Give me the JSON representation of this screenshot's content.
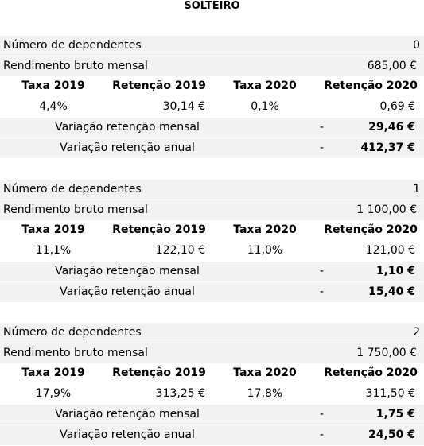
{
  "title": "SOLTEIRO",
  "blocks": [
    {
      "dependents": {
        "label": "Número de dependentes",
        "value": 0
      },
      "income": {
        "label": "Rendimento bruto mensal",
        "value": "685,00 €"
      },
      "headers": [
        "Taxa 2019",
        "Retenção 2019",
        "Taxa 2020",
        "Retenção 2020"
      ],
      "values": [
        "4,4%",
        "30,14 €",
        "0,1%",
        "0,69 €"
      ],
      "monthly": {
        "label": "Variação retenção mensal",
        "sign": "-",
        "value": "29,46 €"
      },
      "annual": {
        "label": "Variação retenção anual",
        "sign": "-",
        "value": "412,37 €"
      }
    },
    {
      "dependents": {
        "label": "Número de dependentes",
        "value": 1
      },
      "income": {
        "label": "Rendimento bruto mensal",
        "value": "1 100,00 €"
      },
      "headers": [
        "Taxa 2019",
        "Retenção 2019",
        "Taxa 2020",
        "Retenção 2020"
      ],
      "values": [
        "11,1%",
        "122,10 €",
        "11,0%",
        "121,00 €"
      ],
      "monthly": {
        "label": "Variação retenção mensal",
        "sign": "-",
        "value": "1,10 €"
      },
      "annual": {
        "label": "Variação retenção anual",
        "sign": "-",
        "value": "15,40 €"
      }
    },
    {
      "dependents": {
        "label": "Número de dependentes",
        "value": 2
      },
      "income": {
        "label": "Rendimento bruto mensal",
        "value": "1 750,00 €"
      },
      "headers": [
        "Taxa 2019",
        "Retenção 2019",
        "Taxa 2020",
        "Retenção 2020"
      ],
      "values": [
        "17,9%",
        "313,25 €",
        "17,8%",
        "311,50 €"
      ],
      "monthly": {
        "label": "Variação retenção mensal",
        "sign": "-",
        "value": "1,75 €"
      },
      "annual": {
        "label": "Variação retenção anual",
        "sign": "-",
        "value": "24,50 €"
      }
    }
  ]
}
